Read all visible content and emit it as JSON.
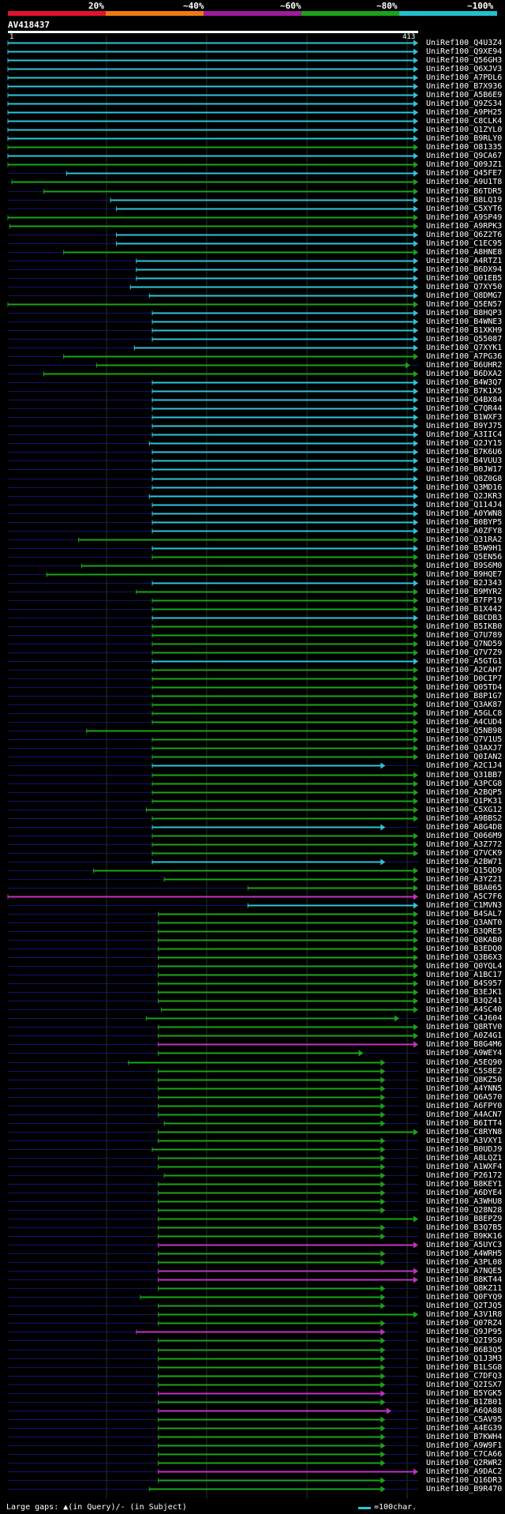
{
  "legend": {
    "percents": [
      "20%",
      "~40%",
      "~60%",
      "~80%",
      "~100%"
    ],
    "colors": [
      "#e3122f",
      "#ee7b11",
      "#a01a9e",
      "#1aa31a",
      "#22bfcf"
    ]
  },
  "query": {
    "name": "AV418437",
    "start": "1",
    "end": "413"
  },
  "colors": {
    "cyan": "#2ec4d9",
    "green": "#1aa31a",
    "magenta": "#c033c0",
    "navy": "#13136e",
    "grid": "#1c3a1c"
  },
  "hits": [
    [
      "UniRef100_Q4U3Z4",
      "c",
      1,
      413
    ],
    [
      "UniRef100_Q9XE94",
      "c",
      1,
      413
    ],
    [
      "UniRef100_Q56GH3",
      "c",
      1,
      413
    ],
    [
      "UniRef100_Q6XJV3",
      "c",
      1,
      413
    ],
    [
      "UniRef100_A7PDL6",
      "c",
      1,
      413
    ],
    [
      "UniRef100_B7X936",
      "c",
      1,
      413
    ],
    [
      "UniRef100_A5B6E9",
      "c",
      1,
      413
    ],
    [
      "UniRef100_Q9ZS34",
      "c",
      1,
      413
    ],
    [
      "UniRef100_A9PH25",
      "c",
      1,
      413
    ],
    [
      "UniRef100_C8CLK4",
      "c",
      1,
      413
    ],
    [
      "UniRef100_Q1ZYL0",
      "c",
      1,
      413
    ],
    [
      "UniRef100_B9RLY0",
      "c",
      1,
      413
    ],
    [
      "UniRef100_O81335",
      "g",
      1,
      413
    ],
    [
      "UniRef100_Q9CA67",
      "c",
      1,
      413
    ],
    [
      "UniRef100_Q09JZ1",
      "g",
      1,
      413
    ],
    [
      "UniRef100_Q45FE7",
      "c",
      60,
      413
    ],
    [
      "UniRef100_A9U1T8",
      "g",
      5,
      413
    ],
    [
      "UniRef100_B6TDR5",
      "g",
      37,
      413
    ],
    [
      "UniRef100_B8LQ19",
      "c",
      104,
      413
    ],
    [
      "UniRef100_C5XYT6",
      "c",
      110,
      413
    ],
    [
      "UniRef100_A9SP49",
      "g",
      1,
      413
    ],
    [
      "UniRef100_A9RPK3",
      "g",
      3,
      413
    ],
    [
      "UniRef100_Q6Z2T6",
      "c",
      110,
      413
    ],
    [
      "UniRef100_C1EC95",
      "c",
      110,
      413
    ],
    [
      "UniRef100_A8HNE8",
      "g",
      57,
      413
    ],
    [
      "UniRef100_A4RTZ1",
      "c",
      130,
      413
    ],
    [
      "UniRef100_B6DX94",
      "c",
      130,
      413
    ],
    [
      "UniRef100_Q01EB5",
      "c",
      130,
      413
    ],
    [
      "UniRef100_Q7XY50",
      "c",
      124,
      413
    ],
    [
      "UniRef100_Q8DMG7",
      "c",
      143,
      413
    ],
    [
      "UniRef100_Q5EN57",
      "g",
      1,
      413
    ],
    [
      "UniRef100_B8HQP3",
      "c",
      146,
      413
    ],
    [
      "UniRef100_B4WNE3",
      "c",
      146,
      413
    ],
    [
      "UniRef100_B1XKH9",
      "c",
      146,
      413
    ],
    [
      "UniRef100_Q55087",
      "c",
      146,
      413
    ],
    [
      "UniRef100_Q7XYK1",
      "c",
      128,
      413
    ],
    [
      "UniRef100_A7PG36",
      "g",
      57,
      413
    ],
    [
      "UniRef100_B6UHR2",
      "g",
      90,
      405
    ],
    [
      "UniRef100_B6DXA2",
      "g",
      37,
      413
    ],
    [
      "UniRef100_B4W3Q7",
      "c",
      146,
      413
    ],
    [
      "UniRef100_B7K1X5",
      "c",
      146,
      413
    ],
    [
      "UniRef100_Q4BX84",
      "c",
      146,
      413
    ],
    [
      "UniRef100_C7QR44",
      "c",
      146,
      413
    ],
    [
      "UniRef100_B1WXF3",
      "c",
      146,
      413
    ],
    [
      "UniRef100_B9YJ75",
      "c",
      146,
      413
    ],
    [
      "UniRef100_A3IIC4",
      "c",
      146,
      413
    ],
    [
      "UniRef100_Q2JY15",
      "c",
      143,
      413
    ],
    [
      "UniRef100_B7K6U6",
      "c",
      146,
      413
    ],
    [
      "UniRef100_B4VUU3",
      "c",
      146,
      413
    ],
    [
      "UniRef100_B0JW17",
      "c",
      146,
      413
    ],
    [
      "UniRef100_Q8Z0G8",
      "c",
      146,
      413
    ],
    [
      "UniRef100_Q3MD16",
      "c",
      146,
      413
    ],
    [
      "UniRef100_Q2JKR3",
      "c",
      143,
      413
    ],
    [
      "UniRef100_Q114J4",
      "c",
      146,
      413
    ],
    [
      "UniRef100_A0YWN8",
      "c",
      146,
      413
    ],
    [
      "UniRef100_B0BYP5",
      "c",
      146,
      413
    ],
    [
      "UniRef100_A0ZFY8",
      "c",
      146,
      413
    ],
    [
      "UniRef100_Q31RA2",
      "g",
      72,
      413
    ],
    [
      "UniRef100_B5W9H1",
      "c",
      146,
      413
    ],
    [
      "UniRef100_Q5EN56",
      "g",
      146,
      413
    ],
    [
      "UniRef100_B9S6M0",
      "g",
      75,
      413
    ],
    [
      "UniRef100_B9HQE7",
      "g",
      40,
      413
    ],
    [
      "UniRef100_B2J343",
      "c",
      146,
      413
    ],
    [
      "UniRef100_B9MYR2",
      "g",
      130,
      413
    ],
    [
      "UniRef100_B7FP19",
      "g",
      146,
      413
    ],
    [
      "UniRef100_B1X442",
      "g",
      146,
      413
    ],
    [
      "UniRef100_B8CDB3",
      "c",
      146,
      413
    ],
    [
      "UniRef100_B5IKB0",
      "g",
      146,
      413
    ],
    [
      "UniRef100_Q7U789",
      "g",
      146,
      413
    ],
    [
      "UniRef100_Q7ND59",
      "g",
      146,
      413
    ],
    [
      "UniRef100_Q7V7Z9",
      "g",
      146,
      413
    ],
    [
      "UniRef100_A5GTG1",
      "c",
      146,
      413
    ],
    [
      "UniRef100_A2CAH7",
      "g",
      146,
      413
    ],
    [
      "UniRef100_D0CIP7",
      "g",
      146,
      413
    ],
    [
      "UniRef100_Q05TD4",
      "g",
      146,
      413
    ],
    [
      "UniRef100_B8P1G7",
      "g",
      146,
      413
    ],
    [
      "UniRef100_Q3AK87",
      "g",
      146,
      413
    ],
    [
      "UniRef100_A5GLC8",
      "g",
      146,
      413
    ],
    [
      "UniRef100_A4CUD4",
      "g",
      146,
      413
    ],
    [
      "UniRef100_Q5NB98",
      "g",
      80,
      413
    ],
    [
      "UniRef100_Q7V1U5",
      "g",
      146,
      413
    ],
    [
      "UniRef100_Q3AXJ7",
      "g",
      146,
      413
    ],
    [
      "UniRef100_Q0IAN2",
      "g",
      146,
      413
    ],
    [
      "UniRef100_A2C1J4",
      "c",
      146,
      380
    ],
    [
      "UniRef100_Q31BB7",
      "g",
      146,
      413
    ],
    [
      "UniRef100_A3PCG8",
      "g",
      146,
      413
    ],
    [
      "UniRef100_A2BQP5",
      "g",
      146,
      413
    ],
    [
      "UniRef100_Q1PK31",
      "g",
      146,
      413
    ],
    [
      "UniRef100_C5XG12",
      "g",
      140,
      413
    ],
    [
      "UniRef100_A9BBS2",
      "g",
      146,
      413
    ],
    [
      "UniRef100_A8G4D8",
      "c",
      146,
      380
    ],
    [
      "UniRef100_Q066M9",
      "g",
      146,
      413
    ],
    [
      "UniRef100_A3Z772",
      "g",
      146,
      413
    ],
    [
      "UniRef100_Q7VCK9",
      "g",
      146,
      413
    ],
    [
      "UniRef100_A2BW71",
      "c",
      146,
      380
    ],
    [
      "UniRef100_Q15QD9",
      "g",
      87,
      413
    ],
    [
      "UniRef100_A3YZ21",
      "g",
      158,
      413
    ],
    [
      "UniRef100_B8A065",
      "g",
      242,
      413
    ],
    [
      "UniRef100_A5C7F6",
      "m",
      1,
      413
    ],
    [
      "UniRef100_C1MVN3",
      "c",
      242,
      413
    ],
    [
      "UniRef100_B4SAL7",
      "g",
      152,
      413
    ],
    [
      "UniRef100_Q3ANT0",
      "g",
      152,
      413
    ],
    [
      "UniRef100_B3QRE5",
      "g",
      152,
      413
    ],
    [
      "UniRef100_Q8KAB0",
      "g",
      152,
      413
    ],
    [
      "UniRef100_B3EDQ0",
      "g",
      152,
      413
    ],
    [
      "UniRef100_Q3B6X3",
      "g",
      152,
      413
    ],
    [
      "UniRef100_Q0YQL4",
      "g",
      152,
      413
    ],
    [
      "UniRef100_A1BC17",
      "g",
      152,
      413
    ],
    [
      "UniRef100_B4S957",
      "g",
      152,
      413
    ],
    [
      "UniRef100_B3EJK1",
      "g",
      152,
      413
    ],
    [
      "UniRef100_B3QZ41",
      "g",
      152,
      413
    ],
    [
      "UniRef100_A4SC40",
      "g",
      155,
      413
    ],
    [
      "UniRef100_C4J604",
      "g",
      140,
      394
    ],
    [
      "UniRef100_Q8RTV0",
      "g",
      152,
      413
    ],
    [
      "UniRef100_A0Z4G1",
      "g",
      152,
      413
    ],
    [
      "UniRef100_B8G4M6",
      "m",
      152,
      413
    ],
    [
      "UniRef100_A9WEY4",
      "g",
      152,
      358
    ],
    [
      "UniRef100_A5EQ90",
      "g",
      122,
      380
    ],
    [
      "UniRef100_C5S8E2",
      "g",
      152,
      380
    ],
    [
      "UniRef100_Q8KZ50",
      "g",
      152,
      380
    ],
    [
      "UniRef100_A4YNN5",
      "g",
      152,
      380
    ],
    [
      "UniRef100_Q6A570",
      "g",
      152,
      380
    ],
    [
      "UniRef100_A6FPY0",
      "g",
      152,
      380
    ],
    [
      "UniRef100_A4ACN7",
      "g",
      152,
      380
    ],
    [
      "UniRef100_B6ITT4",
      "g",
      158,
      380
    ],
    [
      "UniRef100_C8RYN8",
      "g",
      152,
      413
    ],
    [
      "UniRef100_A3VXY1",
      "g",
      152,
      380
    ],
    [
      "UniRef100_B0UDJ9",
      "g",
      146,
      380
    ],
    [
      "UniRef100_A8LQZ1",
      "g",
      152,
      380
    ],
    [
      "UniRef100_A1WXF4",
      "g",
      152,
      380
    ],
    [
      "UniRef100_P26172",
      "g",
      158,
      380
    ],
    [
      "UniRef100_B8KEY1",
      "g",
      152,
      380
    ],
    [
      "UniRef100_A6DYE4",
      "g",
      152,
      380
    ],
    [
      "UniRef100_A3WHU8",
      "g",
      152,
      380
    ],
    [
      "UniRef100_Q28N28",
      "g",
      152,
      380
    ],
    [
      "UniRef100_B8EPZ9",
      "g",
      152,
      413
    ],
    [
      "UniRef100_B3Q7B5",
      "g",
      152,
      380
    ],
    [
      "UniRef100_B9KK16",
      "g",
      152,
      380
    ],
    [
      "UniRef100_A5UYC3",
      "m",
      152,
      413
    ],
    [
      "UniRef100_A4WRH5",
      "g",
      152,
      380
    ],
    [
      "UniRef100_A3PL08",
      "g",
      152,
      380
    ],
    [
      "UniRef100_A7NQE5",
      "m",
      152,
      413
    ],
    [
      "UniRef100_B8KT44",
      "m",
      152,
      413
    ],
    [
      "UniRef100_Q8KZ11",
      "g",
      152,
      380
    ],
    [
      "UniRef100_Q0FYQ9",
      "g",
      134,
      380
    ],
    [
      "UniRef100_Q2TJQ5",
      "g",
      152,
      380
    ],
    [
      "UniRef100_A3V1R8",
      "g",
      152,
      413
    ],
    [
      "UniRef100_Q07RZ4",
      "g",
      152,
      380
    ],
    [
      "UniRef100_Q9JP95",
      "m",
      130,
      380
    ],
    [
      "UniRef100_Q2I9S0",
      "g",
      152,
      380
    ],
    [
      "UniRef100_B6B3Q5",
      "g",
      152,
      380
    ],
    [
      "UniRef100_Q1J3M3",
      "g",
      152,
      380
    ],
    [
      "UniRef100_B1LSG8",
      "g",
      152,
      380
    ],
    [
      "UniRef100_C7DFQ3",
      "g",
      152,
      380
    ],
    [
      "UniRef100_Q2ISX7",
      "g",
      152,
      380
    ],
    [
      "UniRef100_B5YGK5",
      "m",
      152,
      380
    ],
    [
      "UniRef100_B1ZB01",
      "g",
      152,
      380
    ],
    [
      "UniRef100_A6QA88",
      "m",
      152,
      386
    ],
    [
      "UniRef100_C5AV95",
      "g",
      152,
      380
    ],
    [
      "UniRef100_A4EG39",
      "g",
      152,
      380
    ],
    [
      "UniRef100_B7KWH4",
      "g",
      152,
      380
    ],
    [
      "UniRef100_A9W9F1",
      "g",
      152,
      380
    ],
    [
      "UniRef100_C7CA66",
      "g",
      152,
      380
    ],
    [
      "UniRef100_Q2RWR2",
      "g",
      152,
      380
    ],
    [
      "UniRef100_A9DAC2",
      "m",
      152,
      413
    ],
    [
      "UniRef100_Q16DR3",
      "g",
      152,
      380
    ],
    [
      "UniRef100_B9R470",
      "g",
      143,
      380
    ]
  ],
  "footer": {
    "gap_text": "Large gaps: ▲(in Query)/- (in Subject)",
    "scale_text": "=100char."
  }
}
